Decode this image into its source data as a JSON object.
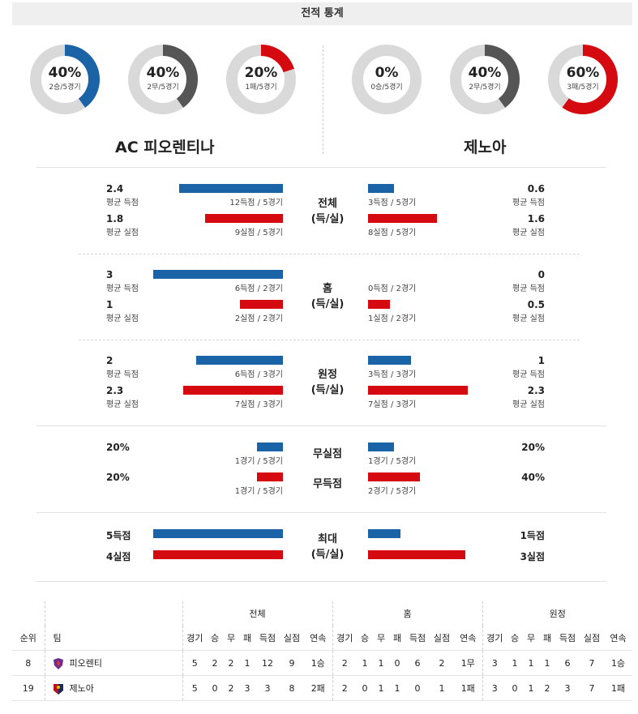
{
  "title": "전적 통계",
  "home": {
    "name": "AC 피오렌티나",
    "donuts": [
      {
        "pct_label": "40%",
        "sub": "2승/5경기",
        "value": 0.4,
        "color": "#1a63a7"
      },
      {
        "pct_label": "40%",
        "sub": "2무/5경기",
        "value": 0.4,
        "color": "#555555"
      },
      {
        "pct_label": "20%",
        "sub": "1패/5경기",
        "value": 0.2,
        "color": "#d40a10"
      }
    ]
  },
  "away": {
    "name": "제노아",
    "donuts": [
      {
        "pct_label": "0%",
        "sub": "0승/5경기",
        "value": 0.0,
        "color": "#1a63a7"
      },
      {
        "pct_label": "40%",
        "sub": "2무/5경기",
        "value": 0.4,
        "color": "#555555"
      },
      {
        "pct_label": "60%",
        "sub": "3패/5경기",
        "value": 0.6,
        "color": "#d40a10"
      }
    ]
  },
  "stats": {
    "total": {
      "label1": "전체",
      "label2": "(득/실)",
      "home_scored": {
        "value": "2.4",
        "caption": "평균 득점",
        "bar_text": "12득점 / 5경기",
        "ratio": 0.8
      },
      "home_conceded": {
        "value": "1.8",
        "caption": "평균 실점",
        "bar_text": "9실점 / 5경기",
        "ratio": 0.6
      },
      "away_scored": {
        "value": "0.6",
        "caption": "평균 득점",
        "bar_text": "3득점 / 5경기",
        "ratio": 0.2
      },
      "away_conceded": {
        "value": "1.6",
        "caption": "평균 실점",
        "bar_text": "8실점 / 5경기",
        "ratio": 0.533
      }
    },
    "home_games": {
      "label1": "홈",
      "label2": "(득/실)",
      "home_scored": {
        "value": "3",
        "caption": "평균 득점",
        "bar_text": "6득점 / 2경기",
        "ratio": 1.0
      },
      "home_conceded": {
        "value": "1",
        "caption": "평균 실점",
        "bar_text": "2실점 / 2경기",
        "ratio": 0.333
      },
      "away_scored": {
        "value": "0",
        "caption": "평균 득점",
        "bar_text": "0득점 / 2경기",
        "ratio": 0.0
      },
      "away_conceded": {
        "value": "0.5",
        "caption": "평균 실점",
        "bar_text": "1실점 / 2경기",
        "ratio": 0.167
      }
    },
    "away_games": {
      "label1": "원정",
      "label2": "(득/실)",
      "home_scored": {
        "value": "2",
        "caption": "평균 득점",
        "bar_text": "6득점 / 3경기",
        "ratio": 0.667
      },
      "home_conceded": {
        "value": "2.3",
        "caption": "평균 실점",
        "bar_text": "7실점 / 3경기",
        "ratio": 0.767
      },
      "away_scored": {
        "value": "1",
        "caption": "평균 득점",
        "bar_text": "3득점 / 3경기",
        "ratio": 0.333
      },
      "away_conceded": {
        "value": "2.3",
        "caption": "평균 실점",
        "bar_text": "7실점 / 3경기",
        "ratio": 0.767
      }
    },
    "clean": {
      "label_top": "무실점",
      "label_bottom": "무득점",
      "home_clean": {
        "value": "20%",
        "bar_text": "1경기 / 5경기",
        "ratio": 0.2
      },
      "home_nogoal": {
        "value": "20%",
        "bar_text": "1경기 / 5경기",
        "ratio": 0.2
      },
      "away_clean": {
        "value": "20%",
        "bar_text": "1경기 / 5경기",
        "ratio": 0.2
      },
      "away_nogoal": {
        "value": "40%",
        "bar_text": "2경기 / 5경기",
        "ratio": 0.4
      }
    },
    "max": {
      "label1": "최대",
      "label2": "(득/실)",
      "home_scored": {
        "value": "5득점",
        "ratio": 1.0
      },
      "home_conceded": {
        "value": "4실점",
        "ratio": 1.0
      },
      "away_scored": {
        "value": "1득점",
        "ratio": 0.25
      },
      "away_conceded": {
        "value": "3실점",
        "ratio": 0.75
      }
    }
  },
  "table": {
    "groups": [
      "전체",
      "홈",
      "원정"
    ],
    "headers": {
      "rank": "순위",
      "team": "팀",
      "cols": [
        "경기",
        "승",
        "무",
        "패",
        "득점",
        "실점",
        "연속"
      ]
    },
    "rows": [
      {
        "rank": "8",
        "team": "피오렌티",
        "badge_color": "#6a2d91",
        "total": [
          "5",
          "2",
          "2",
          "1",
          "12",
          "9",
          "1승"
        ],
        "home": [
          "2",
          "1",
          "1",
          "0",
          "6",
          "2",
          "1무"
        ],
        "away": [
          "3",
          "1",
          "1",
          "1",
          "6",
          "7",
          "1승"
        ]
      },
      {
        "rank": "19",
        "team": "제노아",
        "badge_color": "#b8151b",
        "total": [
          "5",
          "0",
          "2",
          "3",
          "3",
          "8",
          "2패"
        ],
        "home": [
          "2",
          "0",
          "1",
          "1",
          "0",
          "1",
          "1패"
        ],
        "away": [
          "3",
          "0",
          "1",
          "2",
          "3",
          "7",
          "1패"
        ]
      }
    ]
  }
}
